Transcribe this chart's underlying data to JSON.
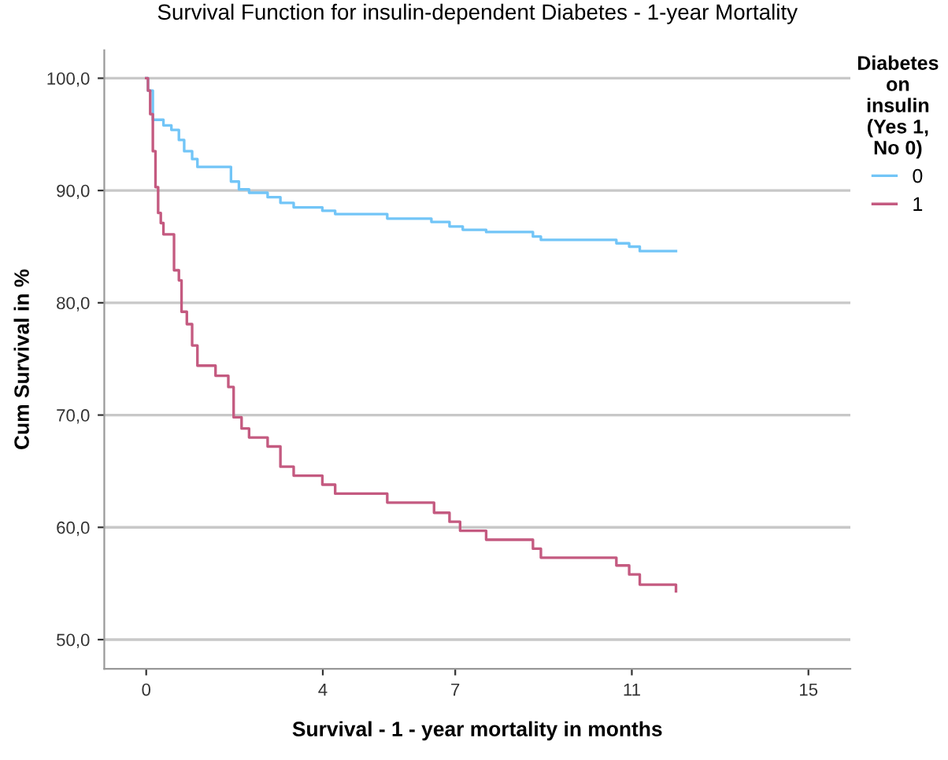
{
  "chart_data": {
    "type": "step",
    "title": "Survival Function for insulin-dependent Diabetes - 1-year Mortality",
    "xlabel": "Survival - 1 - year mortality in months",
    "ylabel": "Cum Survival in %",
    "legend_title": "Diabetes\non\ninsulin\n(Yes 1,\nNo 0)",
    "legend": "right",
    "grid": "y",
    "xlim": [
      -0.95,
      15.95
    ],
    "xticks": [
      0,
      4,
      7,
      11,
      15
    ],
    "ylim": [
      47.4,
      102.5
    ],
    "yticks": [
      {
        "value": 50,
        "label": "50,0"
      },
      {
        "value": 60,
        "label": "60,0"
      },
      {
        "value": 70,
        "label": "70,0"
      },
      {
        "value": 80,
        "label": "80,0"
      },
      {
        "value": 90,
        "label": "90,0"
      },
      {
        "value": 100,
        "label": "100,0"
      }
    ],
    "series": [
      {
        "name": "0",
        "color": "#72c5f7",
        "x": [
          0,
          0.04,
          0.15,
          0.39,
          0.57,
          0.74,
          0.86,
          1.04,
          1.16,
          1.92,
          2.1,
          2.33,
          2.75,
          3.04,
          3.34,
          3.99,
          4.28,
          5.46,
          6.46,
          6.87,
          7.17,
          7.7,
          8.76,
          8.94,
          10.65,
          10.94,
          11.18,
          12
        ],
        "values": [
          100,
          98.9,
          96.3,
          95.8,
          95.4,
          94.5,
          93.5,
          92.8,
          92.1,
          90.8,
          90.1,
          89.8,
          89.4,
          88.9,
          88.5,
          88.2,
          87.9,
          87.5,
          87.2,
          86.8,
          86.5,
          86.3,
          85.9,
          85.6,
          85.3,
          85.0,
          84.6,
          84.6
        ]
      },
      {
        "name": "1",
        "color": "#c45a80",
        "x": [
          0,
          0.04,
          0.09,
          0.15,
          0.21,
          0.27,
          0.33,
          0.39,
          0.63,
          0.74,
          0.8,
          0.92,
          1.04,
          1.16,
          1.57,
          1.86,
          1.98,
          2.16,
          2.33,
          2.75,
          3.04,
          3.34,
          3.99,
          4.28,
          5.46,
          6.52,
          6.87,
          7.11,
          7.7,
          8.76,
          8.94,
          10.65,
          10.94,
          11.18,
          12
        ],
        "values": [
          100,
          98.9,
          96.8,
          93.5,
          90.3,
          88.0,
          87.1,
          86.1,
          82.9,
          82.0,
          79.2,
          78.1,
          76.2,
          74.4,
          73.5,
          72.5,
          69.8,
          68.8,
          68.0,
          67.2,
          65.4,
          64.6,
          63.8,
          63.0,
          62.2,
          61.3,
          60.5,
          59.7,
          58.9,
          58.1,
          57.3,
          56.6,
          55.8,
          54.9,
          54.3
        ]
      }
    ]
  }
}
